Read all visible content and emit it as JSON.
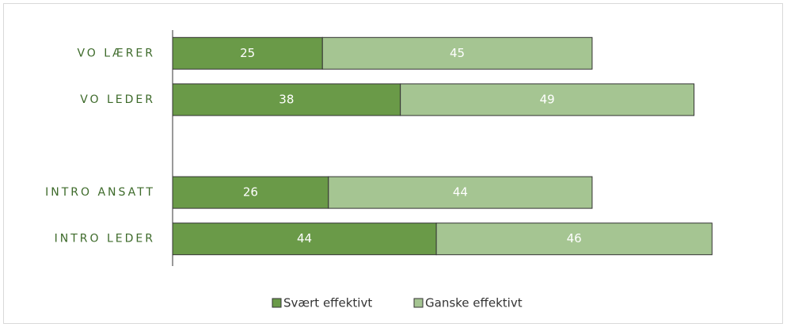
{
  "chart_data": {
    "type": "stacked_barh",
    "categories": [
      "VO LÆRER",
      "VO LEDER",
      null,
      "INTRO ANSATT",
      "INTRO LEDER"
    ],
    "series": [
      {
        "name": "Svært effektivt",
        "color": "#6a9a48",
        "values": [
          25,
          38,
          null,
          26,
          44
        ]
      },
      {
        "name": "Ganske effektivt",
        "color": "#a5c592",
        "values": [
          45,
          49,
          null,
          44,
          46
        ]
      }
    ],
    "xlim": [
      0,
      100
    ]
  }
}
